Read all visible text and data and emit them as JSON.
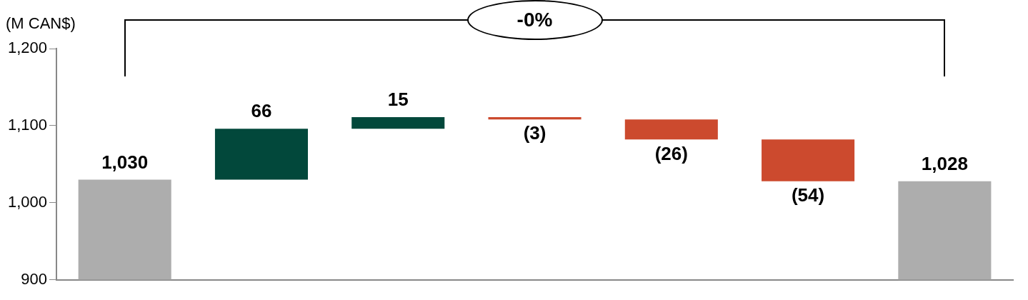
{
  "chart_data": {
    "type": "bar",
    "ylabel": "(M CAN$)",
    "categories": [
      null,
      null,
      null,
      null,
      null,
      null,
      null
    ],
    "values": [
      1030,
      66,
      15,
      -3,
      -26,
      -54,
      1028
    ],
    "base": [
      null,
      1030,
      1096,
      1111,
      1108,
      1082,
      null
    ],
    "colors": [
      "#adadad",
      "#02483b",
      "#02483b",
      "#cc4a2e",
      "#cc4a2e",
      "#cc4a2e",
      "#adadad"
    ],
    "value_labels": [
      "1,030",
      "66",
      "15",
      "(3)",
      "(26)",
      "(54)",
      "1,028"
    ],
    "ylim": [
      900,
      1200
    ],
    "yticks": [
      900,
      {
        "value": 1000,
        "label": "1,000"
      },
      {
        "value": 1100,
        "label": "1,100"
      },
      {
        "value": 1200,
        "label": "1,200"
      }
    ],
    "annotations": [
      "-0%"
    ],
    "grid": false,
    "legend": false
  }
}
